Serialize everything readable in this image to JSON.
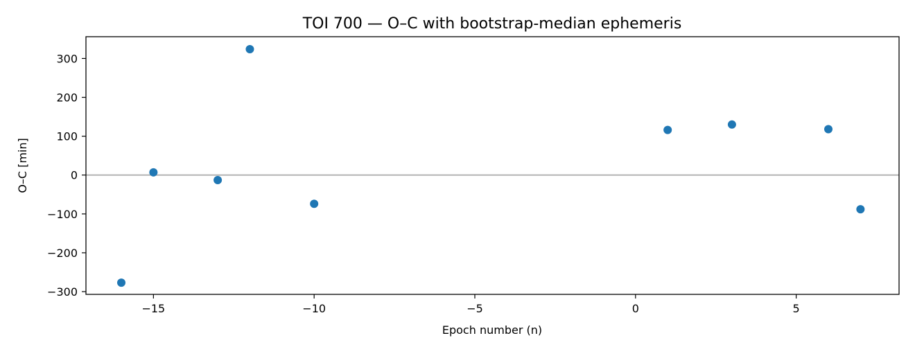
{
  "chart_data": {
    "type": "scatter",
    "title": "TOI 700 — O–C with bootstrap-median ephemeris",
    "xlabel": "Epoch number (n)",
    "ylabel": "O–C [min]",
    "xlim": [
      -17.1,
      8.2
    ],
    "ylim": [
      -307,
      356
    ],
    "x_ticks": [
      {
        "value": -15,
        "label": "−15"
      },
      {
        "value": -10,
        "label": "−10"
      },
      {
        "value": -5,
        "label": "−5"
      },
      {
        "value": 0,
        "label": "0"
      },
      {
        "value": 5,
        "label": "5"
      }
    ],
    "y_ticks": [
      {
        "value": -300,
        "label": "−300"
      },
      {
        "value": -200,
        "label": "−200"
      },
      {
        "value": -100,
        "label": "−100"
      },
      {
        "value": 0,
        "label": "0"
      },
      {
        "value": 100,
        "label": "100"
      },
      {
        "value": 200,
        "label": "200"
      },
      {
        "value": 300,
        "label": "300"
      }
    ],
    "reference_line": {
      "y": 0,
      "color": "#b3b3b3"
    },
    "grid": false,
    "series": [
      {
        "color": "#1f77b4",
        "points": [
          {
            "x": -16,
            "y": -277
          },
          {
            "x": -15,
            "y": 7
          },
          {
            "x": -13,
            "y": -13
          },
          {
            "x": -12,
            "y": 324
          },
          {
            "x": -10,
            "y": -74
          },
          {
            "x": 1,
            "y": 116
          },
          {
            "x": 3,
            "y": 130
          },
          {
            "x": 6,
            "y": 118
          },
          {
            "x": 7,
            "y": -88
          }
        ]
      }
    ]
  }
}
